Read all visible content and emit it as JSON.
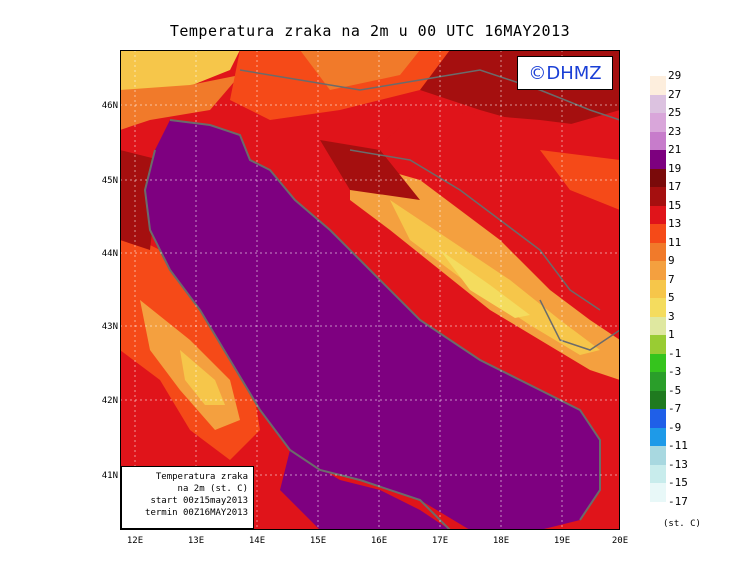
{
  "title": "Temperatura zraka na 2m u 00 UTC 16MAY2013",
  "badge": "©DHMZ",
  "info": {
    "line1": "Temperatura zraka",
    "line2": "na 2m (st. C)",
    "line3": "start 00z15may2013",
    "line4": "termin 00Z16MAY2013"
  },
  "map_axes": {
    "lat_ticks": [
      "46N",
      "45N",
      "44N",
      "43N",
      "42N",
      "41N"
    ],
    "lon_ticks": [
      "12E",
      "13E",
      "14E",
      "15E",
      "16E",
      "17E",
      "18E",
      "19E",
      "20E"
    ]
  },
  "legend": {
    "units": "(st. C)",
    "labels": [
      "29",
      "27",
      "25",
      "23",
      "21",
      "19",
      "17",
      "15",
      "13",
      "11",
      "9",
      "7",
      "5",
      "3",
      "1",
      "-1",
      "-3",
      "-5",
      "-7",
      "-9",
      "-11",
      "-13",
      "-15",
      "-17"
    ],
    "colors": [
      "#fdeedd",
      "#dcc2e0",
      "#d9a6da",
      "#c77ccb",
      "#7d007f",
      "#7a0a0a",
      "#a50f0f",
      "#e0141a",
      "#f54a18",
      "#f17a2a",
      "#f4a03f",
      "#f6c64a",
      "#f4dc5e",
      "#dfe8a0",
      "#99cc33",
      "#35c41d",
      "#2a9e2a",
      "#1f7a1f",
      "#1f5fe8",
      "#1e9ae8",
      "#a8d8e0",
      "#c8ecec",
      "#e8f8f8",
      "#ffffff"
    ]
  },
  "colors": {
    "sea": "#7e0080",
    "coast": "#6b6b6b"
  }
}
